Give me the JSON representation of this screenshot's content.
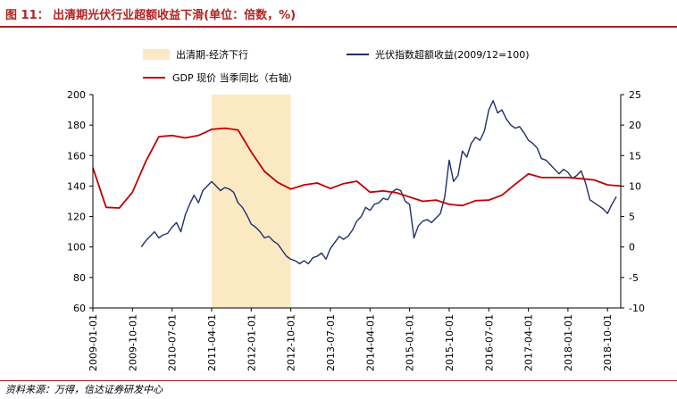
{
  "header": {
    "figure_title": "图 11： 出清期光伏行业超额收益下滑(单位：倍数，%)"
  },
  "footer": {
    "source": "资料来源：万得，信达证券研发中心"
  },
  "colors": {
    "accent": "#b22222",
    "pv_line": "#1f2f6b",
    "gdp_line": "#c00000",
    "shade": "#fbe9c3"
  },
  "chart_data": {
    "type": "line",
    "xaxis_tick_labels": [
      "2009-01-01",
      "2009-10-01",
      "2010-07-01",
      "2011-04-01",
      "2012-01-01",
      "2012-10-01",
      "2013-07-01",
      "2014-04-01",
      "2015-01-01",
      "2015-10-01",
      "2016-07-01",
      "2017-04-01",
      "2018-01-01",
      "2018-10-01"
    ],
    "xaxis_range": [
      "2009-01-01",
      "2019-01-01"
    ],
    "left_axis": {
      "range": [
        60,
        200
      ],
      "ticks": [
        "200",
        "180",
        "160",
        "140",
        "120",
        "100",
        "80",
        "60"
      ]
    },
    "right_axis": {
      "range": [
        -10,
        25
      ],
      "ticks": [
        "25",
        "20",
        "15",
        "10",
        "5",
        "0",
        "-5",
        "-10"
      ]
    },
    "shaded_period": {
      "name": "出清期-经济下行",
      "start": "2011-04-01",
      "end": "2012-10-01"
    },
    "series": [
      {
        "name": "光伏指数超额收益(2009/12=100)",
        "axis": "left",
        "points": [
          [
            "2009-12-01",
            100
          ],
          [
            "2010-01-01",
            104
          ],
          [
            "2010-02-01",
            107
          ],
          [
            "2010-03-01",
            110
          ],
          [
            "2010-04-01",
            106
          ],
          [
            "2010-05-01",
            108
          ],
          [
            "2010-06-01",
            109
          ],
          [
            "2010-07-01",
            113
          ],
          [
            "2010-08-01",
            116
          ],
          [
            "2010-09-01",
            110
          ],
          [
            "2010-10-01",
            121
          ],
          [
            "2010-11-01",
            128
          ],
          [
            "2010-12-01",
            134
          ],
          [
            "2011-01-01",
            129
          ],
          [
            "2011-02-01",
            137
          ],
          [
            "2011-03-01",
            140
          ],
          [
            "2011-04-01",
            143
          ],
          [
            "2011-05-01",
            140
          ],
          [
            "2011-06-01",
            137
          ],
          [
            "2011-07-01",
            139
          ],
          [
            "2011-08-01",
            138
          ],
          [
            "2011-09-01",
            136
          ],
          [
            "2011-10-01",
            129
          ],
          [
            "2011-11-01",
            126
          ],
          [
            "2011-12-01",
            121
          ],
          [
            "2012-01-01",
            115
          ],
          [
            "2012-02-01",
            113
          ],
          [
            "2012-03-01",
            110
          ],
          [
            "2012-04-01",
            106
          ],
          [
            "2012-05-01",
            107
          ],
          [
            "2012-06-01",
            104
          ],
          [
            "2012-07-01",
            102
          ],
          [
            "2012-08-01",
            98
          ],
          [
            "2012-09-01",
            94
          ],
          [
            "2012-10-01",
            92
          ],
          [
            "2012-11-01",
            91
          ],
          [
            "2012-12-01",
            89
          ],
          [
            "2013-01-01",
            91
          ],
          [
            "2013-02-01",
            89
          ],
          [
            "2013-03-01",
            93
          ],
          [
            "2013-04-01",
            94
          ],
          [
            "2013-05-01",
            96
          ],
          [
            "2013-06-01",
            92
          ],
          [
            "2013-07-01",
            99
          ],
          [
            "2013-08-01",
            103
          ],
          [
            "2013-09-01",
            107
          ],
          [
            "2013-10-01",
            105
          ],
          [
            "2013-11-01",
            107
          ],
          [
            "2013-12-01",
            111
          ],
          [
            "2014-01-01",
            117
          ],
          [
            "2014-02-01",
            120
          ],
          [
            "2014-03-01",
            126
          ],
          [
            "2014-04-01",
            124
          ],
          [
            "2014-05-01",
            128
          ],
          [
            "2014-06-01",
            129
          ],
          [
            "2014-07-01",
            132
          ],
          [
            "2014-08-01",
            131
          ],
          [
            "2014-09-01",
            136
          ],
          [
            "2014-10-01",
            138
          ],
          [
            "2014-11-01",
            137
          ],
          [
            "2014-12-01",
            130
          ],
          [
            "2015-01-01",
            128
          ],
          [
            "2015-02-01",
            106
          ],
          [
            "2015-03-01",
            114
          ],
          [
            "2015-04-01",
            117
          ],
          [
            "2015-05-01",
            118
          ],
          [
            "2015-06-01",
            116
          ],
          [
            "2015-07-01",
            119
          ],
          [
            "2015-08-01",
            122
          ],
          [
            "2015-09-01",
            133
          ],
          [
            "2015-10-01",
            157
          ],
          [
            "2015-11-01",
            143
          ],
          [
            "2015-12-01",
            147
          ],
          [
            "2016-01-01",
            163
          ],
          [
            "2016-02-01",
            159
          ],
          [
            "2016-03-01",
            168
          ],
          [
            "2016-04-01",
            172
          ],
          [
            "2016-05-01",
            170
          ],
          [
            "2016-06-01",
            176
          ],
          [
            "2016-07-01",
            190
          ],
          [
            "2016-08-01",
            196
          ],
          [
            "2016-09-01",
            188
          ],
          [
            "2016-10-01",
            190
          ],
          [
            "2016-11-01",
            184
          ],
          [
            "2016-12-01",
            180
          ],
          [
            "2017-01-01",
            178
          ],
          [
            "2017-02-01",
            179
          ],
          [
            "2017-03-01",
            175
          ],
          [
            "2017-04-01",
            170
          ],
          [
            "2017-05-01",
            168
          ],
          [
            "2017-06-01",
            165
          ],
          [
            "2017-07-01",
            158
          ],
          [
            "2017-08-01",
            157
          ],
          [
            "2017-09-01",
            154
          ],
          [
            "2017-10-01",
            151
          ],
          [
            "2017-11-01",
            148
          ],
          [
            "2017-12-01",
            151
          ],
          [
            "2018-01-01",
            149
          ],
          [
            "2018-02-01",
            145
          ],
          [
            "2018-03-01",
            147
          ],
          [
            "2018-04-01",
            150
          ],
          [
            "2018-05-01",
            142
          ],
          [
            "2018-06-01",
            131
          ],
          [
            "2018-07-01",
            129
          ],
          [
            "2018-08-01",
            127
          ],
          [
            "2018-09-01",
            125
          ],
          [
            "2018-10-01",
            122
          ],
          [
            "2018-11-01",
            128
          ],
          [
            "2018-12-01",
            133
          ]
        ]
      },
      {
        "name": "GDP 现价 当季同比（右轴）",
        "axis": "right",
        "points": [
          [
            "2009-01-01",
            13
          ],
          [
            "2009-04-01",
            6.5
          ],
          [
            "2009-07-01",
            6.4
          ],
          [
            "2009-10-01",
            9
          ],
          [
            "2010-01-01",
            14
          ],
          [
            "2010-04-01",
            18.1
          ],
          [
            "2010-07-01",
            18.3
          ],
          [
            "2010-10-01",
            17.9
          ],
          [
            "2011-01-01",
            18.3
          ],
          [
            "2011-04-01",
            19.3
          ],
          [
            "2011-07-01",
            19.5
          ],
          [
            "2011-10-01",
            19.2
          ],
          [
            "2012-01-01",
            15.6
          ],
          [
            "2012-04-01",
            12.4
          ],
          [
            "2012-07-01",
            10.6
          ],
          [
            "2012-10-01",
            9.5
          ],
          [
            "2013-01-01",
            10.2
          ],
          [
            "2013-04-01",
            10.5
          ],
          [
            "2013-07-01",
            9.6
          ],
          [
            "2013-10-01",
            10.4
          ],
          [
            "2014-01-01",
            10.8
          ],
          [
            "2014-04-01",
            9.0
          ],
          [
            "2014-07-01",
            9.2
          ],
          [
            "2014-10-01",
            8.9
          ],
          [
            "2015-01-01",
            8.2
          ],
          [
            "2015-04-01",
            7.5
          ],
          [
            "2015-07-01",
            7.7
          ],
          [
            "2015-10-01",
            7.0
          ],
          [
            "2016-01-01",
            6.8
          ],
          [
            "2016-04-01",
            7.6
          ],
          [
            "2016-07-01",
            7.7
          ],
          [
            "2016-10-01",
            8.5
          ],
          [
            "2017-01-01",
            10.3
          ],
          [
            "2017-04-01",
            12.0
          ],
          [
            "2017-07-01",
            11.4
          ],
          [
            "2017-10-01",
            11.4
          ],
          [
            "2018-01-01",
            11.4
          ],
          [
            "2018-04-01",
            11.2
          ],
          [
            "2018-07-01",
            11.0
          ],
          [
            "2018-10-01",
            10.2
          ],
          [
            "2019-01-01",
            10.0
          ]
        ]
      }
    ]
  }
}
